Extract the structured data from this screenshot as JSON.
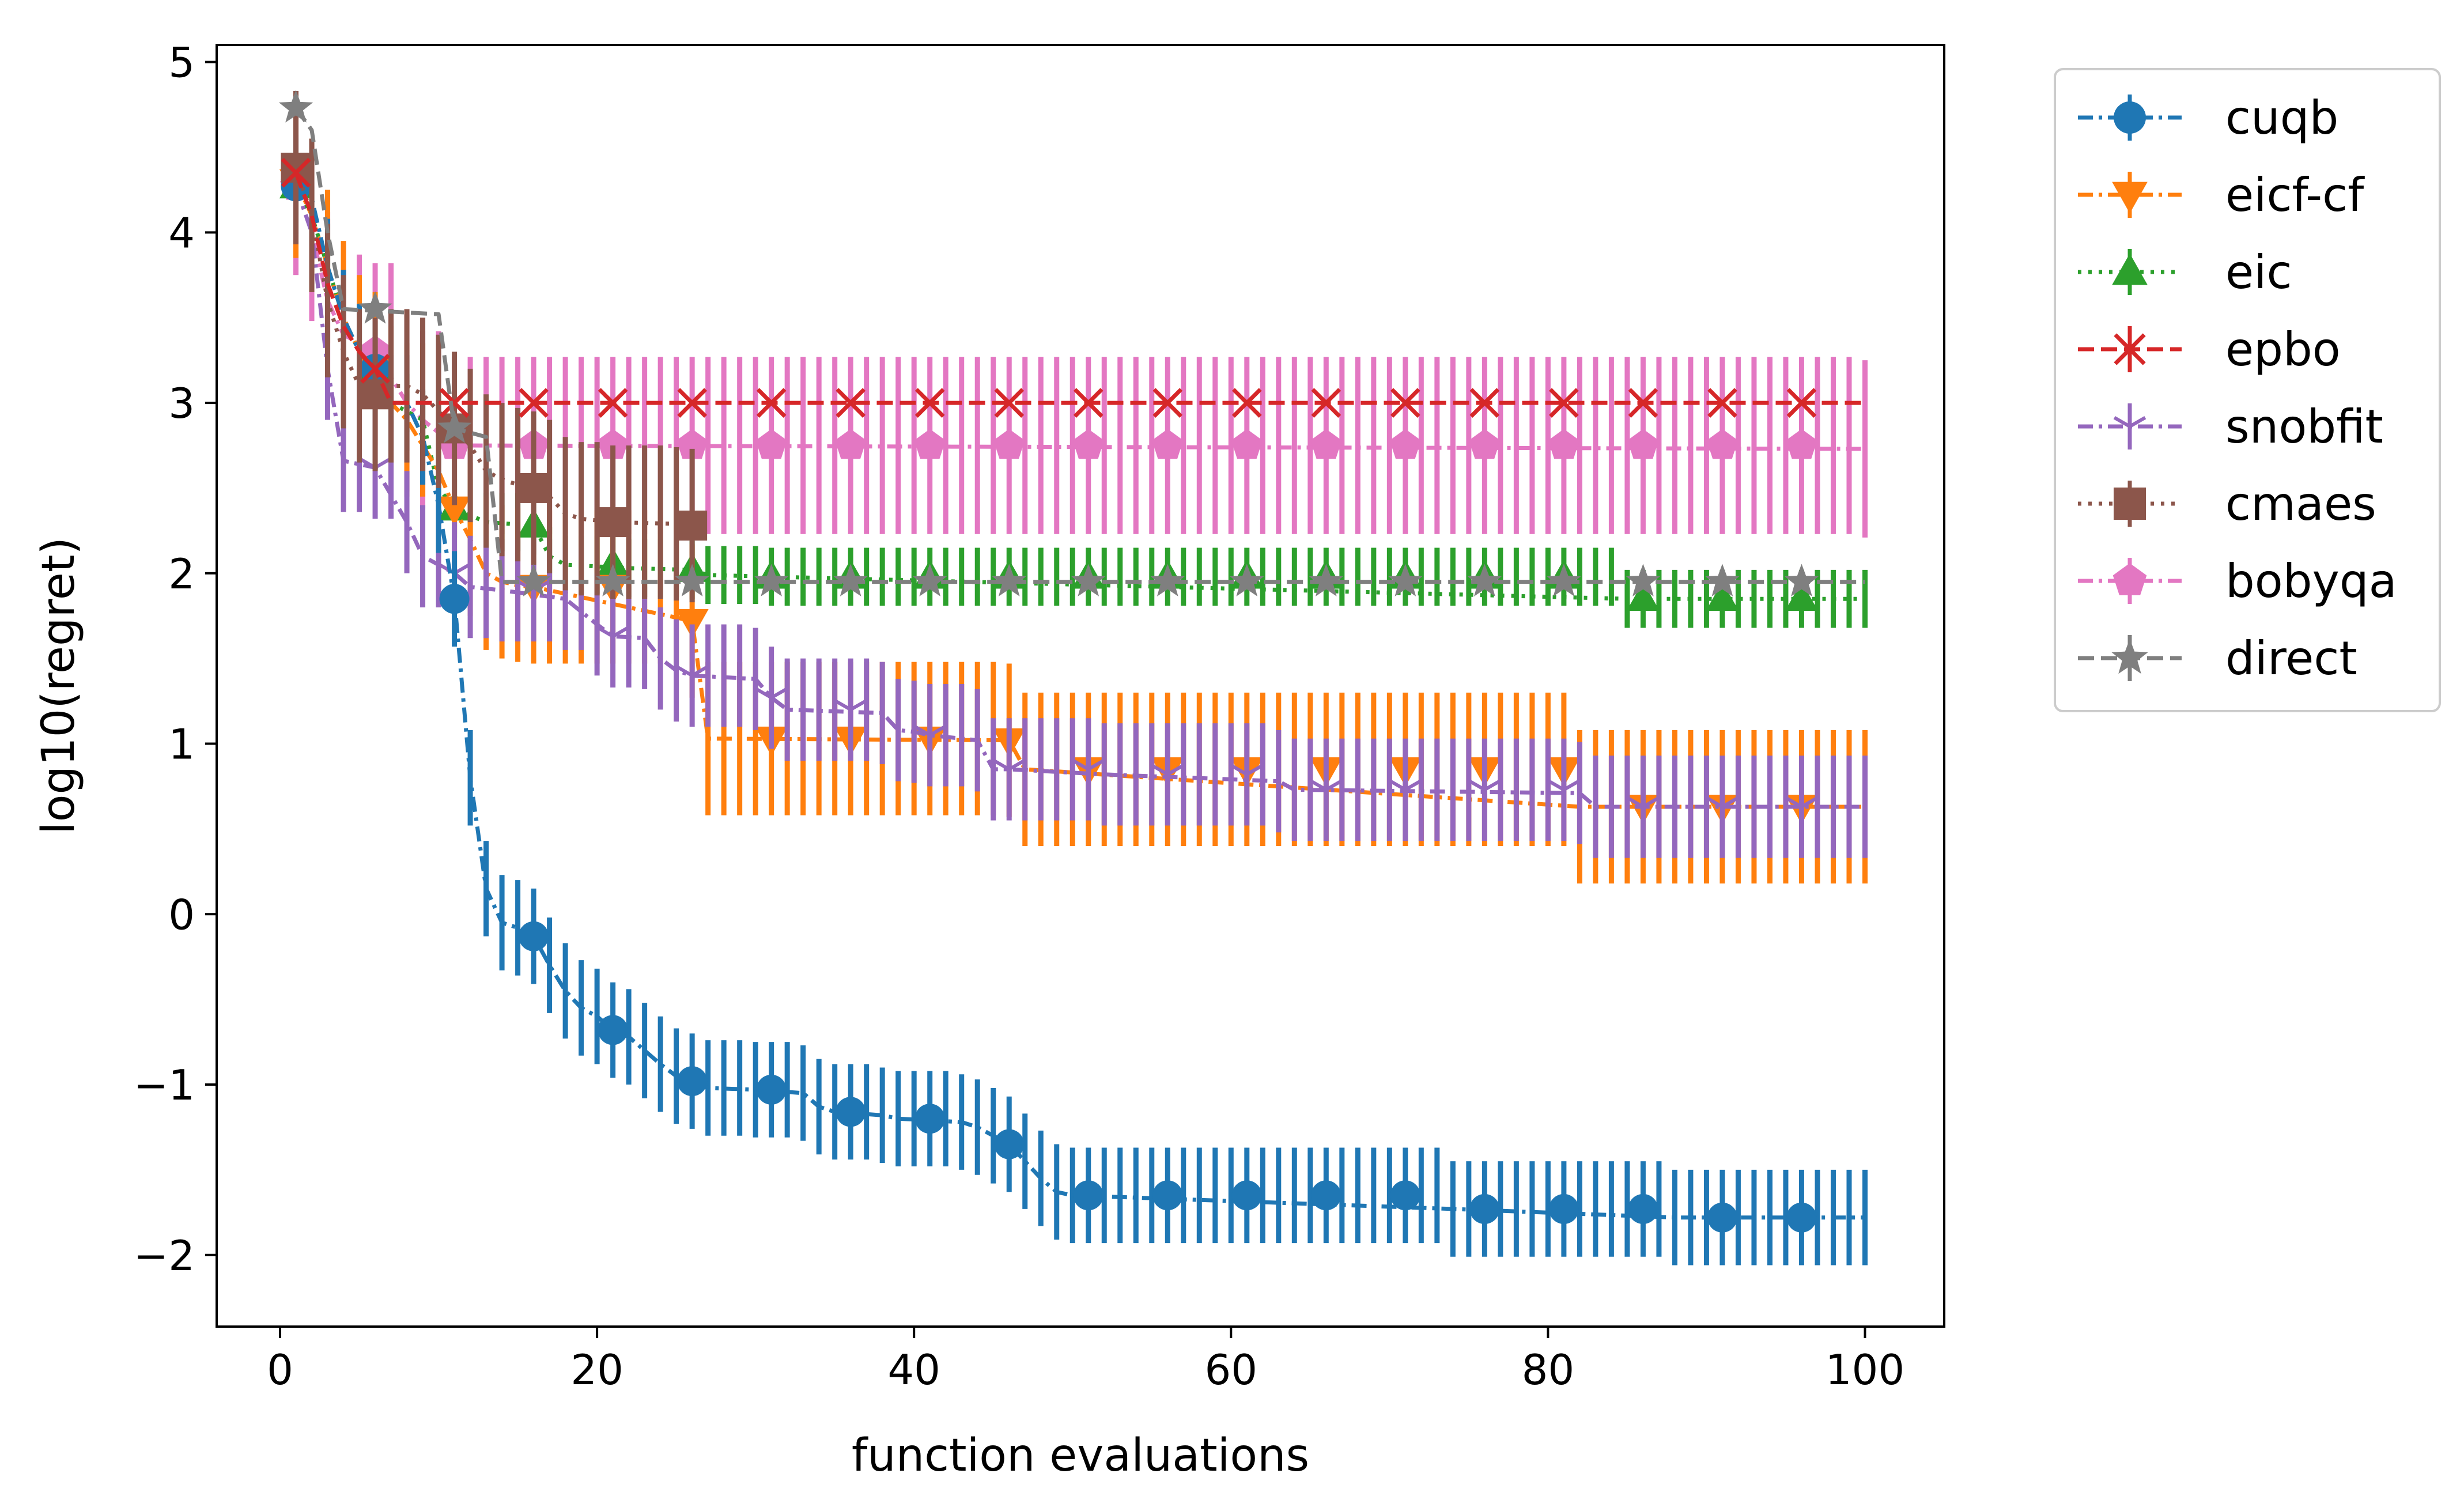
{
  "chart_data": {
    "type": "line",
    "xlabel": "function evaluations",
    "ylabel": "log10(regret)",
    "xlim": [
      -4,
      105
    ],
    "ylim": [
      -2.42,
      5.1
    ],
    "xticks": [
      0,
      20,
      40,
      60,
      80,
      100
    ],
    "yticks": [
      5,
      4,
      3,
      2,
      1,
      0,
      -1,
      -2
    ],
    "ytick_labels": [
      "5",
      "4",
      "3",
      "2",
      "1",
      "0",
      "−1",
      "−2"
    ],
    "grid": false,
    "legend_position": "outside-right",
    "marker_x": [
      1,
      6,
      11,
      16,
      21,
      26,
      31,
      36,
      41,
      46,
      51,
      56,
      61,
      66,
      71,
      76,
      81,
      86,
      91,
      96
    ],
    "series": [
      {
        "name": "cuqb",
        "color": "#1f77b4",
        "marker": "circle",
        "dash": "dash-dot",
        "steps": [
          [
            1,
            4.27
          ],
          [
            2,
            4.2
          ],
          [
            3,
            3.8
          ],
          [
            4,
            3.5
          ],
          [
            5,
            3.3
          ],
          [
            6,
            3.2
          ],
          [
            7,
            3.0
          ],
          [
            8,
            3.0
          ],
          [
            9,
            2.8
          ],
          [
            10,
            2.4
          ],
          [
            11,
            1.85
          ],
          [
            12,
            0.8
          ],
          [
            13,
            0.15
          ],
          [
            14,
            -0.05
          ],
          [
            15,
            -0.08
          ],
          [
            16,
            -0.13
          ],
          [
            17,
            -0.3
          ],
          [
            18,
            -0.45
          ],
          [
            19,
            -0.55
          ],
          [
            20,
            -0.6
          ],
          [
            21,
            -0.68
          ],
          [
            22,
            -0.72
          ],
          [
            23,
            -0.8
          ],
          [
            24,
            -0.88
          ],
          [
            25,
            -0.95
          ],
          [
            26,
            -0.98
          ],
          [
            27,
            -1.02
          ],
          [
            30,
            -1.03
          ],
          [
            33,
            -1.05
          ],
          [
            34,
            -1.13
          ],
          [
            35,
            -1.16
          ],
          [
            38,
            -1.18
          ],
          [
            39,
            -1.2
          ],
          [
            43,
            -1.22
          ],
          [
            44,
            -1.25
          ],
          [
            45,
            -1.3
          ],
          [
            46,
            -1.35
          ],
          [
            47,
            -1.45
          ],
          [
            48,
            -1.55
          ],
          [
            49,
            -1.63
          ],
          [
            50,
            -1.65
          ],
          [
            74,
            -1.73
          ],
          [
            88,
            -1.78
          ],
          [
            100,
            -1.78
          ]
        ],
        "err": 0.28
      },
      {
        "name": "eicf-cf",
        "color": "#ff7f0e",
        "marker": "triangle-down",
        "dash": "dash-dot",
        "steps": [
          [
            1,
            4.3
          ],
          [
            2,
            4.1
          ],
          [
            3,
            3.8
          ],
          [
            4,
            3.5
          ],
          [
            5,
            3.3
          ],
          [
            6,
            3.2
          ],
          [
            7,
            3.0
          ],
          [
            8,
            2.9
          ],
          [
            10,
            2.6
          ],
          [
            11,
            2.38
          ],
          [
            12,
            2.2
          ],
          [
            13,
            2.0
          ],
          [
            14,
            1.95
          ],
          [
            15,
            1.93
          ],
          [
            16,
            1.92
          ],
          [
            26,
            1.72
          ],
          [
            27,
            1.03
          ],
          [
            46,
            1.02
          ],
          [
            47,
            0.85
          ],
          [
            82,
            0.63
          ],
          [
            100,
            0.63
          ]
        ],
        "err": 0.45
      },
      {
        "name": "eic",
        "color": "#2ca02c",
        "marker": "triangle-up",
        "dash": "dotted",
        "steps": [
          [
            1,
            4.27
          ],
          [
            2,
            4.1
          ],
          [
            3,
            3.8
          ],
          [
            4,
            3.5
          ],
          [
            5,
            3.3
          ],
          [
            6,
            3.2
          ],
          [
            7,
            3.0
          ],
          [
            9,
            2.9
          ],
          [
            10,
            2.5
          ],
          [
            11,
            2.38
          ],
          [
            13,
            2.3
          ],
          [
            16,
            2.28
          ],
          [
            17,
            2.1
          ],
          [
            18,
            2.05
          ],
          [
            22,
            2.03
          ],
          [
            26,
            2.02
          ],
          [
            27,
            1.99
          ],
          [
            31,
            1.98
          ],
          [
            85,
            1.85
          ],
          [
            100,
            1.85
          ]
        ],
        "err": 0.17
      },
      {
        "name": "epbo",
        "color": "#d62728",
        "marker": "x",
        "dash": "dashed",
        "steps": [
          [
            1,
            4.35
          ],
          [
            2,
            4.1
          ],
          [
            3,
            3.7
          ],
          [
            4,
            3.45
          ],
          [
            5,
            3.3
          ],
          [
            6,
            3.2
          ],
          [
            7,
            3.0
          ],
          [
            100,
            3.0
          ]
        ],
        "err": 0.0
      },
      {
        "name": "snobfit",
        "color": "#9467bd",
        "marker": "tri-down",
        "dash": "dash-dot",
        "steps": [
          [
            1,
            4.27
          ],
          [
            2,
            4.0
          ],
          [
            3,
            3.2
          ],
          [
            4,
            2.66
          ],
          [
            6,
            2.62
          ],
          [
            8,
            2.3
          ],
          [
            9,
            2.1
          ],
          [
            11,
            2.0
          ],
          [
            12,
            1.92
          ],
          [
            14,
            1.9
          ],
          [
            18,
            1.85
          ],
          [
            20,
            1.7
          ],
          [
            21,
            1.63
          ],
          [
            23,
            1.62
          ],
          [
            24,
            1.5
          ],
          [
            25,
            1.43
          ],
          [
            26,
            1.4
          ],
          [
            30,
            1.38
          ],
          [
            31,
            1.27
          ],
          [
            32,
            1.2
          ],
          [
            38,
            1.18
          ],
          [
            39,
            1.08
          ],
          [
            40,
            1.07
          ],
          [
            41,
            1.05
          ],
          [
            44,
            1.02
          ],
          [
            45,
            0.85
          ],
          [
            46,
            0.85
          ],
          [
            52,
            0.82
          ],
          [
            63,
            0.78
          ],
          [
            64,
            0.73
          ],
          [
            82,
            0.71
          ],
          [
            83,
            0.63
          ],
          [
            100,
            0.63
          ]
        ],
        "err": 0.3
      },
      {
        "name": "cmaes",
        "color": "#8c564b",
        "marker": "square",
        "dash": "dotted",
        "steps": [
          [
            1,
            4.38
          ],
          [
            2,
            4.1
          ],
          [
            3,
            3.6
          ],
          [
            4,
            3.3
          ],
          [
            5,
            3.1
          ],
          [
            6,
            3.05
          ],
          [
            7,
            3.1
          ],
          [
            8,
            3.1
          ],
          [
            9,
            3.05
          ],
          [
            10,
            2.95
          ],
          [
            11,
            2.85
          ],
          [
            12,
            2.75
          ],
          [
            13,
            2.6
          ],
          [
            14,
            2.55
          ],
          [
            15,
            2.52
          ],
          [
            16,
            2.5
          ],
          [
            17,
            2.45
          ],
          [
            18,
            2.35
          ],
          [
            19,
            2.32
          ],
          [
            21,
            2.3
          ],
          [
            25,
            2.29
          ],
          [
            26,
            2.28
          ]
        ],
        "err": 0.45
      },
      {
        "name": "bobyqa",
        "color": "#e377c2",
        "marker": "pentagon",
        "dash": "dash-dot",
        "steps": [
          [
            1,
            4.27
          ],
          [
            2,
            4.0
          ],
          [
            3,
            3.6
          ],
          [
            4,
            3.4
          ],
          [
            5,
            3.35
          ],
          [
            6,
            3.3
          ],
          [
            8,
            3.0
          ],
          [
            9,
            2.9
          ],
          [
            11,
            2.75
          ],
          [
            100,
            2.73
          ]
        ],
        "err": 0.52
      },
      {
        "name": "direct",
        "color": "#7f7f7f",
        "marker": "star",
        "dash": "dashed",
        "steps": [
          [
            1,
            4.73
          ],
          [
            2,
            4.6
          ],
          [
            3,
            4.0
          ],
          [
            4,
            3.55
          ],
          [
            10,
            3.52
          ],
          [
            11,
            2.85
          ],
          [
            13,
            2.8
          ],
          [
            14,
            1.95
          ],
          [
            100,
            1.95
          ]
        ],
        "err": 0.0
      }
    ]
  }
}
